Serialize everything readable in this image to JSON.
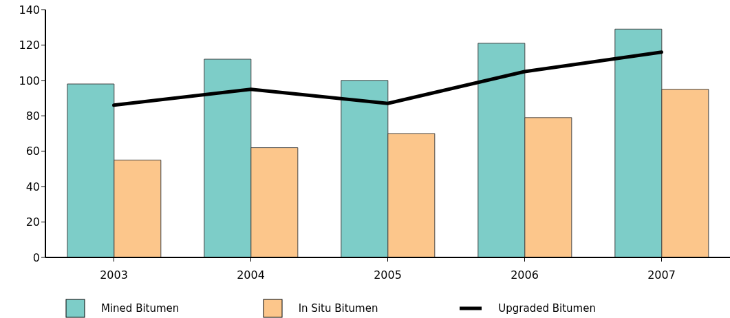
{
  "chart_data": {
    "type": "bar",
    "categories": [
      "2003",
      "2004",
      "2005",
      "2006",
      "2007"
    ],
    "series": [
      {
        "name": "Mined Bitumen",
        "color": "#7dcdc8",
        "values": [
          98,
          112,
          100,
          121,
          129
        ]
      },
      {
        "name": "In Situ Bitumen",
        "color": "#fcc68b",
        "values": [
          55,
          62,
          70,
          79,
          95
        ]
      },
      {
        "name": "Upgraded Bitumen",
        "type": "line",
        "color": "#000000",
        "values": [
          86,
          95,
          87,
          105,
          116
        ]
      }
    ],
    "ylim": [
      0,
      140
    ],
    "yticks": [
      0,
      20,
      40,
      60,
      80,
      100,
      120,
      140
    ],
    "grid": false,
    "legend": "bottom",
    "marker": "none",
    "line_style": "solid"
  }
}
